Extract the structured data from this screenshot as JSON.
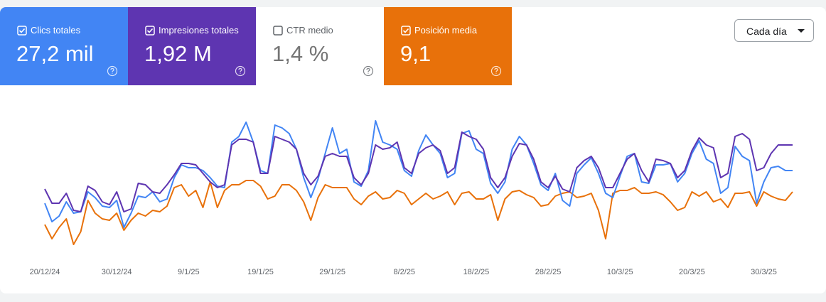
{
  "cards": [
    {
      "label": "Clics totales",
      "value": "27,2 mil",
      "checked": true,
      "color": "#4285f4"
    },
    {
      "label": "Impresiones totales",
      "value": "1,92 M",
      "checked": true,
      "color": "#5e35b1"
    },
    {
      "label": "CTR medio",
      "value": "1,4 %",
      "checked": false,
      "color": "#ffffff"
    },
    {
      "label": "Posición media",
      "value": "9,1",
      "checked": true,
      "color": "#e8710a"
    }
  ],
  "dropdown": "Cada día",
  "chart_data": {
    "type": "line",
    "categories": [
      "20/12/24",
      null,
      null,
      null,
      null,
      null,
      null,
      null,
      null,
      null,
      "30/12/24",
      null,
      null,
      null,
      null,
      null,
      null,
      null,
      null,
      null,
      "9/1/25",
      null,
      null,
      null,
      null,
      null,
      null,
      null,
      null,
      null,
      "19/1/25",
      null,
      null,
      null,
      null,
      null,
      null,
      null,
      null,
      null,
      "29/1/25",
      null,
      null,
      null,
      null,
      null,
      null,
      null,
      null,
      null,
      "8/2/25",
      null,
      null,
      null,
      null,
      null,
      null,
      null,
      null,
      null,
      "18/2/25",
      null,
      null,
      null,
      null,
      null,
      null,
      null,
      null,
      null,
      "28/2/25",
      null,
      null,
      null,
      null,
      null,
      null,
      null,
      null,
      null,
      "10/3/25",
      null,
      null,
      null,
      null,
      null,
      null,
      null,
      null,
      null,
      "20/3/25",
      null,
      null,
      null,
      null,
      null,
      null,
      null,
      null,
      null,
      "30/3/25",
      null,
      null,
      null,
      null
    ],
    "ylim": [
      0,
      100
    ],
    "series": [
      {
        "color": "#e8710a",
        "values": [
          22,
          12,
          20,
          26,
          8,
          17,
          39,
          30,
          26,
          25,
          30,
          18,
          25,
          30,
          28,
          32,
          31,
          35,
          48,
          50,
          42,
          46,
          34,
          52,
          34,
          46,
          50,
          50,
          53,
          53,
          49,
          40,
          42,
          50,
          50,
          46,
          38,
          25,
          41,
          50,
          48,
          48,
          48,
          40,
          36,
          42,
          45,
          40,
          41,
          46,
          44,
          36,
          40,
          44,
          40,
          42,
          45,
          36,
          44,
          45,
          40,
          40,
          43,
          25,
          40,
          45,
          46,
          43,
          41,
          35,
          36,
          42,
          44,
          45,
          41,
          42,
          44,
          32,
          12,
          44,
          46,
          46,
          48,
          44,
          44,
          45,
          43,
          38,
          32,
          34,
          45,
          42,
          45,
          38,
          40,
          34,
          44,
          44,
          45,
          35,
          45,
          42,
          40,
          39,
          45
        ]
      },
      {
        "color": "#4285f4",
        "values": [
          37,
          24,
          28,
          38,
          30,
          31,
          45,
          41,
          35,
          34,
          39,
          20,
          30,
          42,
          41,
          45,
          38,
          40,
          55,
          64,
          62,
          62,
          60,
          55,
          49,
          48,
          80,
          84,
          94,
          80,
          60,
          58,
          92,
          90,
          86,
          75,
          55,
          41,
          54,
          72,
          90,
          72,
          75,
          52,
          49,
          60,
          95,
          80,
          78,
          75,
          60,
          56,
          74,
          85,
          78,
          72,
          55,
          58,
          86,
          88,
          75,
          72,
          51,
          44,
          52,
          75,
          84,
          78,
          65,
          50,
          46,
          58,
          39,
          35,
          58,
          64,
          69,
          58,
          44,
          41,
          56,
          70,
          72,
          52,
          51,
          64,
          64,
          65,
          52,
          58,
          72,
          81,
          68,
          65,
          44,
          48,
          77,
          70,
          67,
          37,
          52,
          62,
          63,
          60,
          60
        ]
      },
      {
        "color": "#5e35b1",
        "values": [
          47,
          37,
          37,
          44,
          32,
          31,
          49,
          46,
          38,
          36,
          45,
          31,
          33,
          51,
          50,
          45,
          44,
          50,
          57,
          65,
          65,
          64,
          58,
          52,
          48,
          50,
          78,
          82,
          82,
          80,
          58,
          58,
          84,
          82,
          80,
          75,
          58,
          50,
          56,
          70,
          72,
          70,
          70,
          55,
          50,
          58,
          78,
          75,
          76,
          80,
          62,
          58,
          72,
          76,
          78,
          74,
          58,
          62,
          87,
          84,
          82,
          75,
          55,
          48,
          55,
          70,
          79,
          78,
          68,
          52,
          48,
          56,
          47,
          45,
          62,
          67,
          70,
          62,
          48,
          48,
          58,
          68,
          72,
          60,
          52,
          68,
          67,
          65,
          55,
          60,
          74,
          83,
          78,
          76,
          55,
          58,
          84,
          86,
          82,
          60,
          62,
          72,
          78,
          78,
          78
        ]
      }
    ]
  }
}
